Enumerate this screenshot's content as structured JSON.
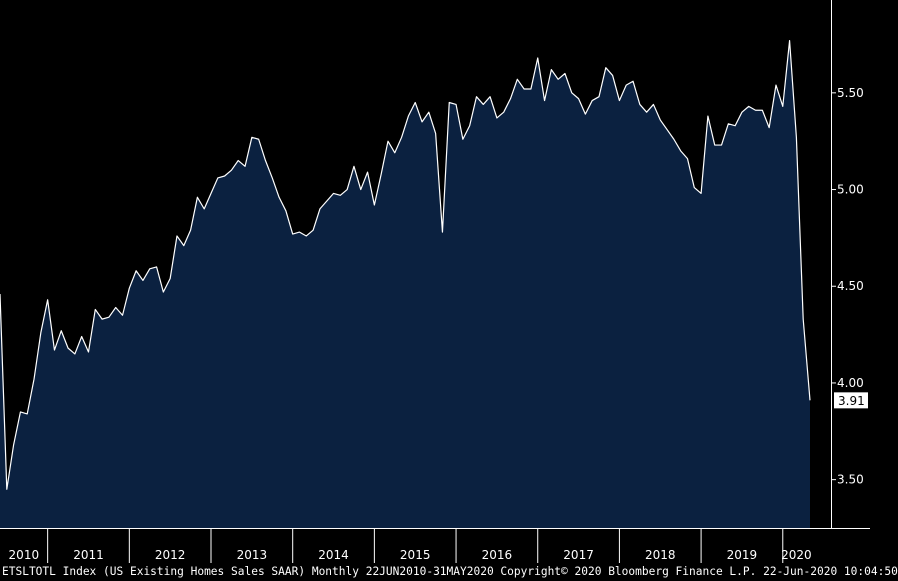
{
  "footer": {
    "text": "ETSLTOTL Index (US Existing Homes Sales SAAR)  Monthly 22JUN2010-31MAY2020 Copyright© 2020 Bloomberg Finance L.P. 22-Jun-2020 10:04:50"
  },
  "chart_data": {
    "type": "area",
    "title": "",
    "xlabel": "",
    "ylabel": "",
    "ylim": [
      3.25,
      5.98
    ],
    "y_ticks": [
      "3.50",
      "4.00",
      "4.50",
      "5.00",
      "5.50"
    ],
    "x_ticks": [
      "2010",
      "2011",
      "2012",
      "2013",
      "2014",
      "2015",
      "2016",
      "2017",
      "2018",
      "2019",
      "2020"
    ],
    "grid": false,
    "legend": "none",
    "last_value_label": "3.91",
    "colors": {
      "fill": "#0b2140",
      "line": "#ffffff",
      "background": "#000000",
      "axis": "#ffffff"
    },
    "series": [
      {
        "start": "2010-06",
        "values": [
          4.46,
          3.45,
          3.68,
          3.85,
          3.84,
          4.02,
          4.26,
          4.43,
          4.17,
          4.27,
          4.18,
          4.15,
          4.24,
          4.16,
          4.38,
          4.33,
          4.34,
          4.39,
          4.35,
          4.49,
          4.58,
          4.53,
          4.59,
          4.6,
          4.47,
          4.54,
          4.76,
          4.71,
          4.79,
          4.96,
          4.9,
          4.98,
          5.06,
          5.07,
          5.1,
          5.15,
          5.12,
          5.27,
          5.26,
          5.15,
          5.06,
          4.96,
          4.89,
          4.77,
          4.78,
          4.76,
          4.79,
          4.9,
          4.94,
          4.98,
          4.97,
          5.0,
          5.12,
          5.0,
          5.09,
          4.92,
          5.08,
          5.25,
          5.19,
          5.27,
          5.38,
          5.45,
          5.35,
          5.4,
          5.29,
          4.78,
          5.45,
          5.44,
          5.26,
          5.33,
          5.48,
          5.44,
          5.48,
          5.37,
          5.4,
          5.47,
          5.57,
          5.52,
          5.52,
          5.68,
          5.46,
          5.62,
          5.57,
          5.6,
          5.5,
          5.47,
          5.39,
          5.46,
          5.48,
          5.63,
          5.59,
          5.46,
          5.54,
          5.56,
          5.44,
          5.4,
          5.44,
          5.36,
          5.31,
          5.26,
          5.2,
          5.16,
          5.01,
          4.98,
          5.38,
          5.23,
          5.23,
          5.34,
          5.33,
          5.4,
          5.43,
          5.41,
          5.41,
          5.32,
          5.54,
          5.43,
          5.77,
          5.27,
          4.33,
          3.91
        ]
      }
    ]
  }
}
